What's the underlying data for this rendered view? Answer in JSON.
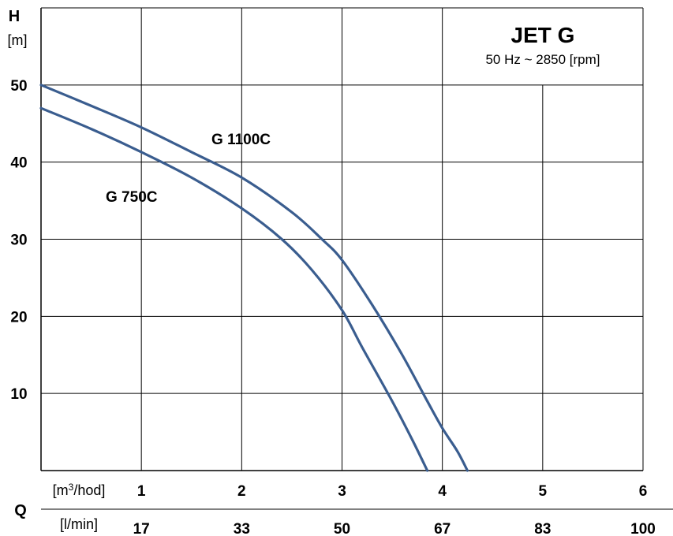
{
  "chart_data": {
    "type": "line",
    "title": "JET G",
    "subtitle": "50 Hz ~ 2850 [rpm]",
    "y_axis": {
      "name": "H",
      "unit": "[m]",
      "ticks": [
        "10",
        "20",
        "30",
        "40",
        "50"
      ],
      "range": [
        0,
        60
      ]
    },
    "x_axis": {
      "name": "Q",
      "primary_unit": "[m3/hod]",
      "primary_unit_base": "[m",
      "primary_unit_sup": "3",
      "primary_unit_rest": "/hod]",
      "primary_ticks": [
        "1",
        "2",
        "3",
        "4",
        "5",
        "6"
      ],
      "secondary_unit": "[l/min]",
      "secondary_ticks": [
        "17",
        "33",
        "50",
        "67",
        "83",
        "100"
      ],
      "range": [
        0,
        6
      ]
    },
    "grid": true,
    "line_color": "#3a5d8f",
    "series": [
      {
        "name": "G 1100C",
        "points": [
          [
            0,
            50
          ],
          [
            0.5,
            47.3
          ],
          [
            1,
            44.5
          ],
          [
            1.5,
            41.3
          ],
          [
            2,
            38
          ],
          [
            2.5,
            33.5
          ],
          [
            2.8,
            30
          ],
          [
            3,
            27.3
          ],
          [
            3.3,
            21.5
          ],
          [
            3.6,
            15
          ],
          [
            3.85,
            9
          ],
          [
            4,
            5.5
          ],
          [
            4.15,
            2.5
          ],
          [
            4.25,
            0
          ]
        ]
      },
      {
        "name": "G 750C",
        "points": [
          [
            0,
            47
          ],
          [
            0.5,
            44.3
          ],
          [
            1,
            41.3
          ],
          [
            1.5,
            38
          ],
          [
            2,
            34
          ],
          [
            2.4,
            30
          ],
          [
            2.7,
            26
          ],
          [
            3,
            20.8
          ],
          [
            3.2,
            16
          ],
          [
            3.5,
            9
          ],
          [
            3.7,
            4
          ],
          [
            3.85,
            0
          ]
        ]
      }
    ]
  }
}
